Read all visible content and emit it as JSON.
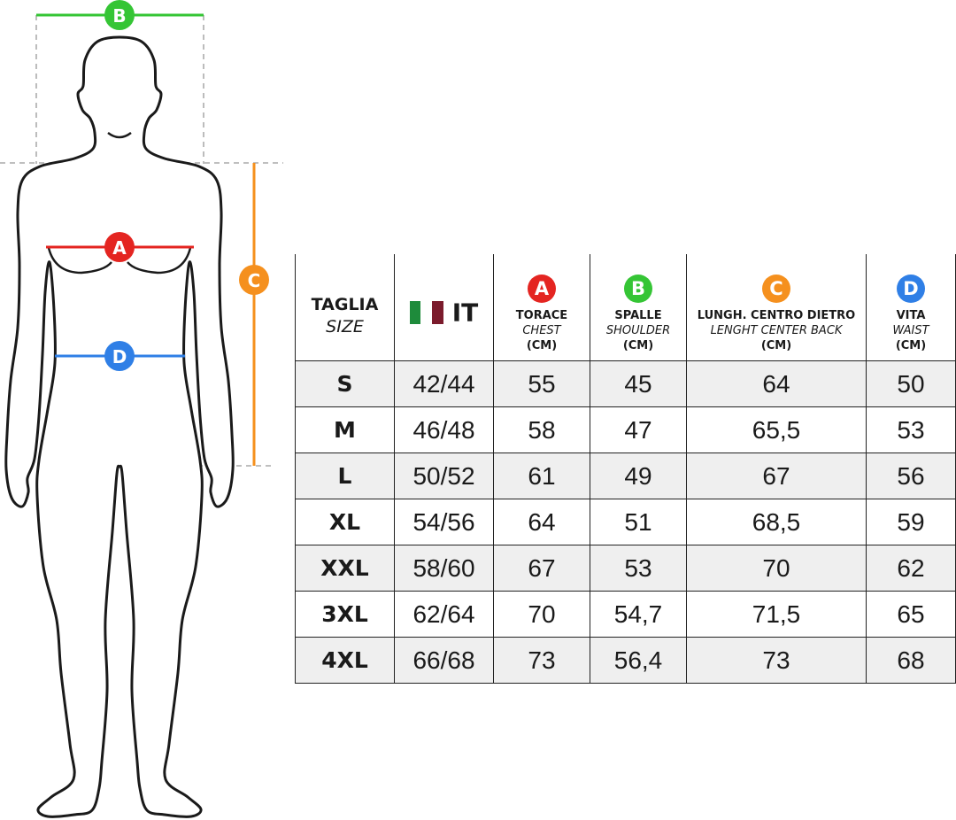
{
  "figure": {
    "markers": {
      "a": "A",
      "b": "B",
      "c": "C",
      "d": "D"
    }
  },
  "table": {
    "columns": [
      {
        "label": "TAGLIA",
        "sublabel": "SIZE"
      },
      {
        "label": "IT"
      },
      {
        "badge": "A",
        "label": "TORACE",
        "sublabel": "CHEST",
        "unit": "(CM)"
      },
      {
        "badge": "B",
        "label": "SPALLE",
        "sublabel": "SHOULDER",
        "unit": "(CM)"
      },
      {
        "badge": "C",
        "label": "LUNGH. CENTRO DIETRO",
        "sublabel": "LENGHT CENTER BACK",
        "unit": "(CM)"
      },
      {
        "badge": "D",
        "label": "VITA",
        "sublabel": "WAIST",
        "unit": "(CM)"
      }
    ],
    "rows": [
      [
        "S",
        "42/44",
        "55",
        "45",
        "64",
        "50"
      ],
      [
        "M",
        "46/48",
        "58",
        "47",
        "65,5",
        "53"
      ],
      [
        "L",
        "50/52",
        "61",
        "49",
        "67",
        "56"
      ],
      [
        "XL",
        "54/56",
        "64",
        "51",
        "68,5",
        "59"
      ],
      [
        "XXL",
        "58/60",
        "67",
        "53",
        "70",
        "62"
      ],
      [
        "3XL",
        "62/64",
        "70",
        "54,7",
        "71,5",
        "65"
      ],
      [
        "4XL",
        "66/68",
        "73",
        "56,4",
        "73",
        "68"
      ]
    ]
  }
}
